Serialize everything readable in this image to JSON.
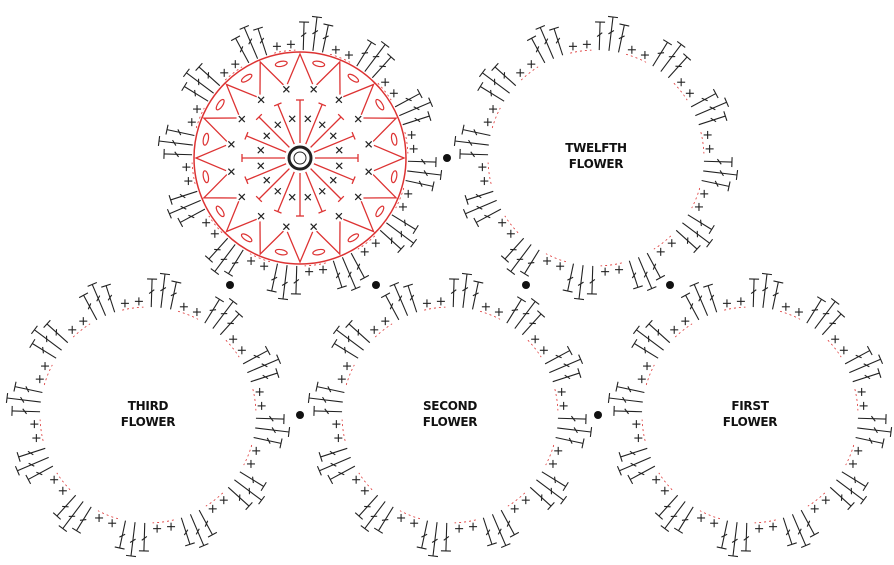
{
  "flowers": [
    {
      "label": [
        "TWELFTH",
        "FLOWER"
      ]
    },
    {
      "label": [
        "THIRD",
        "FLOWER"
      ]
    },
    {
      "label": [
        "SECOND",
        "FLOWER"
      ]
    },
    {
      "label": [
        "FIRST",
        "FLOWER"
      ]
    }
  ]
}
